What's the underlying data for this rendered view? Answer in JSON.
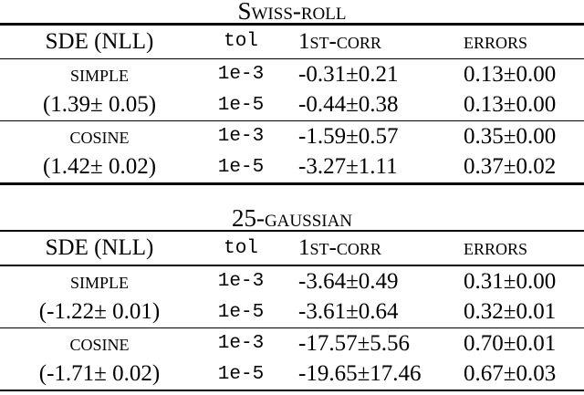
{
  "page": {
    "background": "#ffffff",
    "text_color": "#000000"
  },
  "tables": [
    {
      "title": "Swiss-roll",
      "columns": {
        "sde": "SDE (NLL)",
        "tol": "tol",
        "corr": "1st-corr",
        "errors": "errors"
      },
      "groups": [
        {
          "sde": "simple",
          "nll": "(1.39± 0.05)",
          "rows": [
            {
              "tol": "1e-3",
              "corr": "-0.31±0.21",
              "errors": "0.13±0.00"
            },
            {
              "tol": "1e-5",
              "corr": "-0.44±0.38",
              "errors": "0.13±0.00"
            }
          ]
        },
        {
          "sde": "cosine",
          "nll": "(1.42± 0.02)",
          "rows": [
            {
              "tol": "1e-3",
              "corr": "-1.59±0.57",
              "errors": "0.35±0.00"
            },
            {
              "tol": "1e-5",
              "corr": "-3.27±1.11",
              "errors": "0.37±0.02"
            }
          ]
        }
      ]
    },
    {
      "title": "25-gaussian",
      "columns": {
        "sde": "SDE (NLL)",
        "tol": "tol",
        "corr": "1st-corr",
        "errors": "errors"
      },
      "groups": [
        {
          "sde": "simple",
          "nll": "(-1.22± 0.01)",
          "rows": [
            {
              "tol": "1e-3",
              "corr": "-3.64±0.49",
              "errors": "0.31±0.00"
            },
            {
              "tol": "1e-5",
              "corr": "-3.61±0.64",
              "errors": "0.32±0.01"
            }
          ]
        },
        {
          "sde": "cosine",
          "nll": "(-1.71± 0.02)",
          "rows": [
            {
              "tol": "1e-3",
              "corr": "-17.57±5.56",
              "errors": "0.70±0.01"
            },
            {
              "tol": "1e-5",
              "corr": "-19.65±17.46",
              "errors": "0.67±0.03"
            }
          ]
        }
      ]
    }
  ]
}
